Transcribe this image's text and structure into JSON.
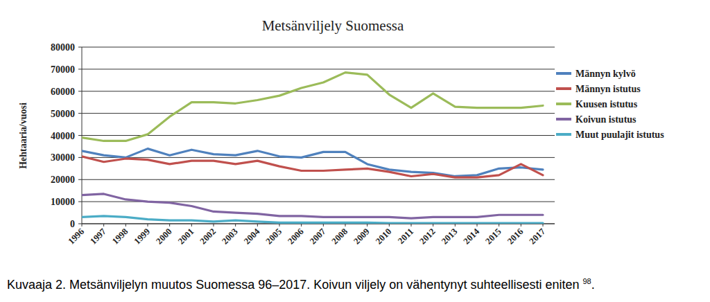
{
  "chart_data": {
    "type": "line",
    "title": "Metsänviljely Suomessa",
    "y_label": "Hehtaaria/vuosi",
    "caption": {
      "text": "Kuvaaja 2. Metsänviljelyn muutos Suomessa 96–2017. Koivun viljely on vähentynyt suhteellisesti eniten",
      "note": "98",
      "end": "."
    },
    "categories": [
      "1996",
      "1997",
      "1998",
      "1999",
      "2000",
      "2001",
      "2002",
      "2003",
      "2004",
      "2005",
      "2006",
      "2007",
      "2008",
      "2009",
      "2010",
      "2011",
      "2012",
      "2013",
      "2014",
      "2015",
      "2016",
      "2017"
    ],
    "series": [
      {
        "name": "Männyn kylvö",
        "color": "#4f81bd",
        "values": [
          33000,
          31000,
          30000,
          34000,
          31000,
          33500,
          31500,
          31000,
          33000,
          30500,
          30000,
          32500,
          32500,
          27000,
          24500,
          23500,
          23000,
          21500,
          22000,
          25000,
          25500,
          24500
        ]
      },
      {
        "name": "Männyn istutus",
        "color": "#c0504d",
        "values": [
          30500,
          28000,
          29500,
          29000,
          27000,
          28500,
          28500,
          27000,
          28500,
          26000,
          24000,
          24000,
          24500,
          25000,
          23500,
          21500,
          22500,
          21000,
          21000,
          22000,
          27000,
          22000
        ]
      },
      {
        "name": "Kuusen istutus",
        "color": "#9bbb59",
        "values": [
          39000,
          37500,
          37500,
          40500,
          48500,
          55000,
          55000,
          54500,
          56000,
          58000,
          61500,
          64000,
          68500,
          67500,
          58500,
          52500,
          59000,
          53000,
          52500,
          52500,
          52500,
          53500
        ]
      },
      {
        "name": "Koivun istutus",
        "color": "#8064a2",
        "values": [
          13000,
          13500,
          11000,
          10000,
          9500,
          8000,
          5500,
          5000,
          4500,
          3500,
          3500,
          3000,
          3000,
          3000,
          3000,
          2500,
          3000,
          3000,
          3000,
          4000,
          4000,
          4000
        ]
      },
      {
        "name": "Muut puulajit istutus",
        "color": "#4bacc6",
        "values": [
          3000,
          3500,
          3000,
          2000,
          1500,
          1500,
          1000,
          1500,
          1000,
          500,
          500,
          500,
          500,
          500,
          300,
          300,
          300,
          300,
          300,
          300,
          300,
          300
        ]
      }
    ],
    "ylim": [
      0,
      80000
    ],
    "yticks": [
      0,
      10000,
      20000,
      30000,
      40000,
      50000,
      60000,
      70000,
      80000
    ],
    "grid": true,
    "legend": "right"
  }
}
